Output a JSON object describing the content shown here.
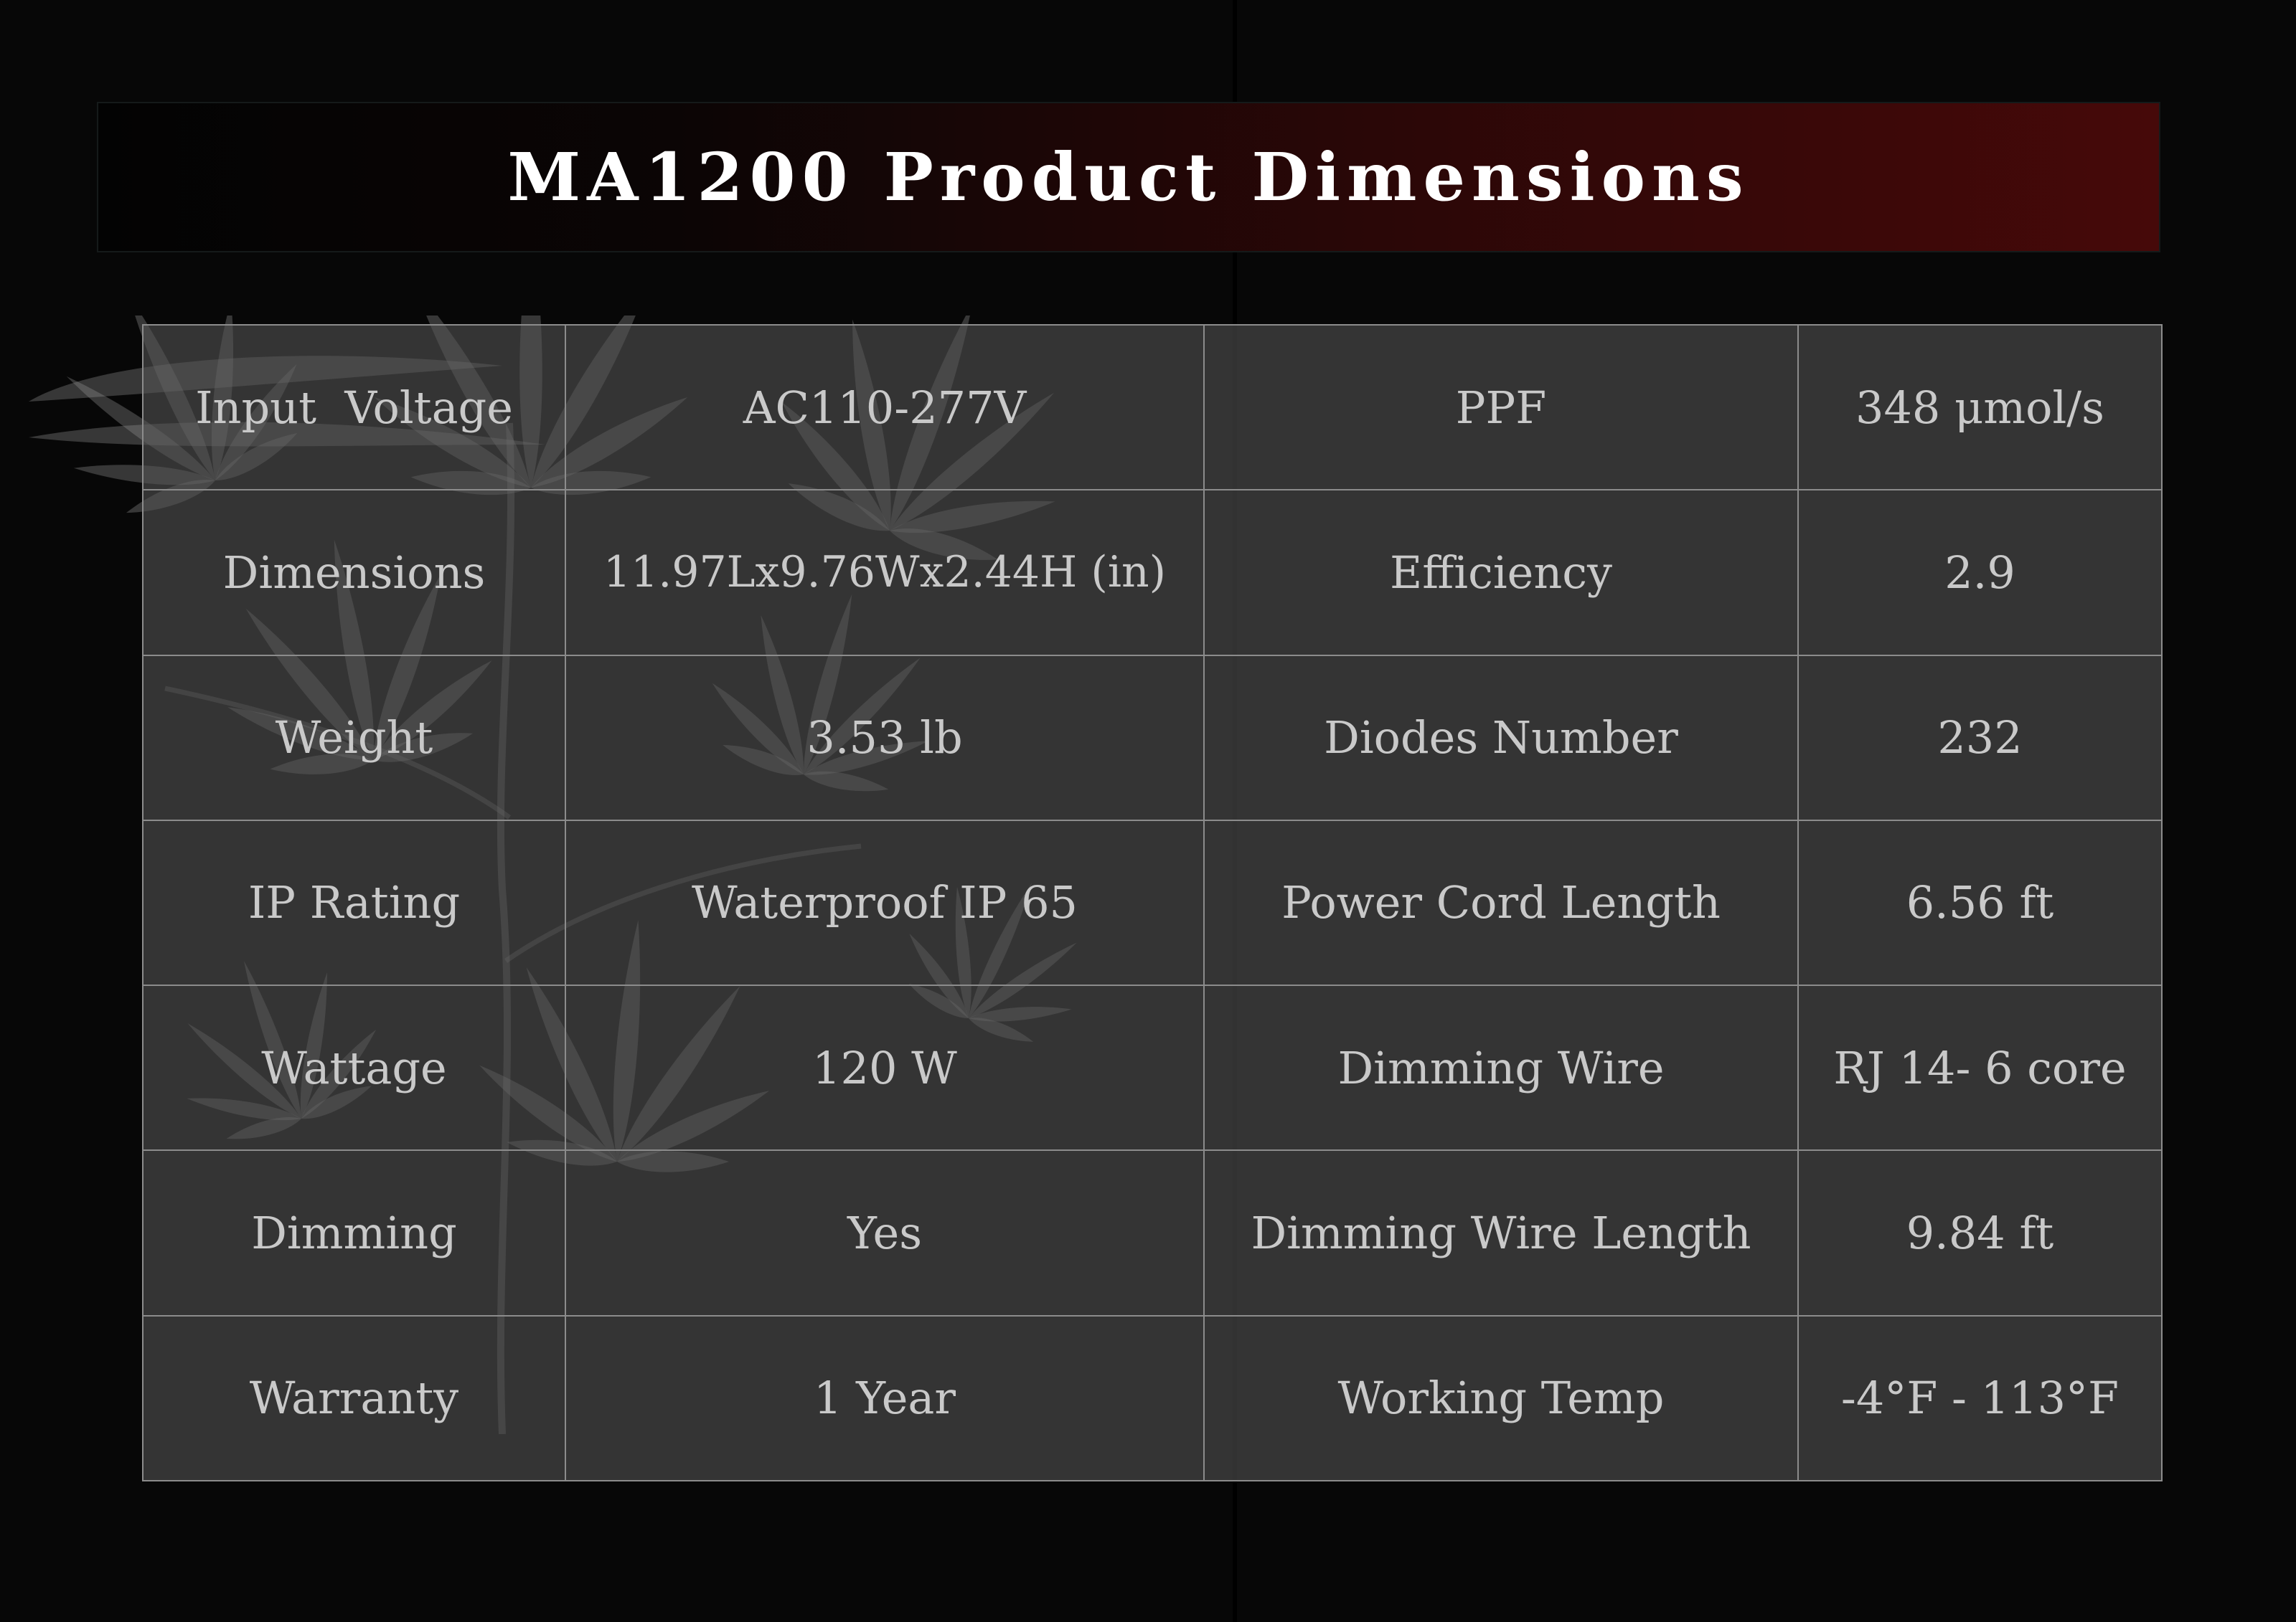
{
  "title": "MA1200 Product Dimensions",
  "specs": [
    {
      "label": "Input  Voltage",
      "value": "AC110-277V",
      "label2": "PPF",
      "value2": "348 μmol/s"
    },
    {
      "label": "Dimensions",
      "value": "11.97Lx9.76Wx2.44H (in)",
      "label2": "Efficiency",
      "value2": "2.9"
    },
    {
      "label": "Weight",
      "value": "3.53 lb",
      "label2": "Diodes Number",
      "value2": "232"
    },
    {
      "label": "IP Rating",
      "value": "Waterproof IP 65",
      "label2": "Power Cord Length",
      "value2": "6.56 ft"
    },
    {
      "label": "Wattage",
      "value": "120 W",
      "label2": "Dimming Wire",
      "value2": "RJ 14- 6 core"
    },
    {
      "label": "Dimming",
      "value": "Yes",
      "label2": "Dimming Wire Length",
      "value2": "9.84 ft"
    },
    {
      "label": "Warranty",
      "value": "1 Year",
      "label2": "Working Temp",
      "value2": "-4°F - 113°F"
    }
  ],
  "colors": {
    "background": "#070707",
    "banner_start": "#030303",
    "banner_end": "#460909",
    "cell_fill": "#545454",
    "grid_line": "#8c8c8c",
    "text": "#c9c9c9",
    "title_text": "#ffffff"
  }
}
